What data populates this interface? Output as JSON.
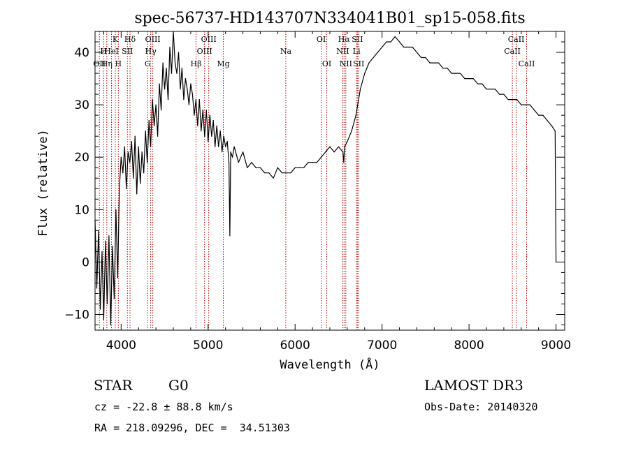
{
  "chart_data": {
    "type": "line",
    "title": "spec-56737-HD143707N334041B01_sp15-058.fits",
    "xlabel": "Wavelength (Å)",
    "ylabel": "Flux (relative)",
    "xlim": [
      3700,
      9100
    ],
    "ylim": [
      -13,
      44
    ],
    "xticks": [
      4000,
      5000,
      6000,
      7000,
      8000,
      9000
    ],
    "yticks": [
      -10,
      0,
      10,
      20,
      30,
      40
    ],
    "grid": false,
    "series": [
      {
        "name": "flux",
        "x": [
          3700,
          3720,
          3740,
          3760,
          3780,
          3800,
          3820,
          3840,
          3860,
          3880,
          3900,
          3920,
          3940,
          3960,
          3980,
          4000,
          4020,
          4040,
          4060,
          4080,
          4100,
          4120,
          4140,
          4160,
          4180,
          4200,
          4220,
          4240,
          4260,
          4280,
          4300,
          4320,
          4340,
          4360,
          4380,
          4400,
          4420,
          4440,
          4460,
          4480,
          4500,
          4520,
          4540,
          4560,
          4580,
          4600,
          4620,
          4640,
          4660,
          4680,
          4700,
          4720,
          4740,
          4760,
          4780,
          4800,
          4820,
          4840,
          4860,
          4880,
          4900,
          4920,
          4940,
          4960,
          4980,
          5000,
          5020,
          5040,
          5060,
          5080,
          5100,
          5120,
          5140,
          5160,
          5180,
          5200,
          5220,
          5240,
          5250,
          5260,
          5280,
          5300,
          5350,
          5400,
          5450,
          5500,
          5550,
          5600,
          5650,
          5700,
          5750,
          5800,
          5850,
          5900,
          5950,
          6000,
          6050,
          6100,
          6150,
          6200,
          6250,
          6300,
          6350,
          6400,
          6450,
          6500,
          6550,
          6560,
          6570,
          6600,
          6650,
          6700,
          6750,
          6800,
          6850,
          6900,
          6950,
          7000,
          7050,
          7100,
          7150,
          7200,
          7250,
          7300,
          7350,
          7400,
          7450,
          7500,
          7550,
          7600,
          7650,
          7700,
          7750,
          7800,
          7850,
          7900,
          7950,
          8000,
          8050,
          8100,
          8150,
          8200,
          8250,
          8300,
          8350,
          8400,
          8450,
          8500,
          8550,
          8600,
          8650,
          8700,
          8750,
          8800,
          8850,
          8900,
          8950,
          8990,
          9000
        ],
        "y": [
          8,
          -5,
          6,
          -9,
          2,
          -11,
          4,
          -8,
          5,
          -12,
          3,
          -7,
          10,
          -3,
          14,
          20,
          17,
          22,
          14,
          21,
          19,
          23,
          16,
          24,
          13,
          22,
          15,
          21,
          17,
          25,
          19,
          27,
          22,
          31,
          26,
          30,
          24,
          34,
          29,
          38,
          33,
          37,
          31,
          41,
          36,
          44,
          38,
          36,
          40,
          33,
          37,
          31,
          35,
          33,
          30,
          34,
          32,
          28,
          31,
          26,
          31,
          25,
          29,
          24,
          29,
          23,
          28,
          24,
          27,
          22,
          26,
          22,
          25,
          21,
          24,
          22,
          23,
          19,
          5,
          21,
          20,
          22,
          19,
          21,
          18,
          19,
          18,
          18,
          17,
          17,
          16,
          18,
          17,
          17,
          17,
          18,
          18,
          18,
          19,
          19,
          19,
          20,
          21,
          22,
          21,
          22,
          21,
          19,
          22,
          23,
          25,
          28,
          33,
          36,
          38,
          39,
          40,
          41,
          42,
          42,
          43,
          42,
          41,
          41,
          41,
          40,
          39,
          39,
          38,
          38,
          38,
          37,
          37,
          36,
          36,
          36,
          35,
          35,
          35,
          34,
          34,
          33,
          33,
          33,
          32,
          32,
          31,
          31,
          31,
          30,
          30,
          30,
          29,
          28,
          28,
          27,
          26,
          25,
          0
        ]
      }
    ],
    "lines": [
      {
        "wl": 3750,
        "label": "OII",
        "row": 2
      },
      {
        "wl": 3798,
        "label": "H",
        "row": 1
      },
      {
        "wl": 3835,
        "label": "Hη",
        "row": 2
      },
      {
        "wl": 3889,
        "label": "HeI",
        "row": 1
      },
      {
        "wl": 3933,
        "label": "K",
        "row": 0
      },
      {
        "wl": 3968,
        "label": "H",
        "row": 2
      },
      {
        "wl": 4072,
        "label": "SII",
        "row": 1
      },
      {
        "wl": 4102,
        "label": "Hδ",
        "row": 0
      },
      {
        "wl": 4305,
        "label": "G",
        "row": 2
      },
      {
        "wl": 4340,
        "label": "Hγ",
        "row": 1
      },
      {
        "wl": 4364,
        "label": "OIII",
        "row": 0
      },
      {
        "wl": 4861,
        "label": "Hβ",
        "row": 2
      },
      {
        "wl": 4959,
        "label": "OIII",
        "row": 1
      },
      {
        "wl": 5007,
        "label": "OIII",
        "row": 0
      },
      {
        "wl": 5175,
        "label": "Mg",
        "row": 2
      },
      {
        "wl": 5893,
        "label": "Na",
        "row": 1
      },
      {
        "wl": 6300,
        "label": "OI",
        "row": 0
      },
      {
        "wl": 6364,
        "label": "OI",
        "row": 2
      },
      {
        "wl": 6548,
        "label": "NII",
        "row": 1
      },
      {
        "wl": 6563,
        "label": "Hα",
        "row": 0
      },
      {
        "wl": 6583,
        "label": "NII",
        "row": 2
      },
      {
        "wl": 6707,
        "label": "Li",
        "row": 1
      },
      {
        "wl": 6716,
        "label": "SII",
        "row": 0
      },
      {
        "wl": 6731,
        "label": "SII",
        "row": 2
      },
      {
        "wl": 8498,
        "label": "CaII",
        "row": 1
      },
      {
        "wl": 8542,
        "label": "CaII",
        "row": 0
      },
      {
        "wl": 8662,
        "label": "CaII",
        "row": 2
      }
    ]
  },
  "info": {
    "class": "STAR",
    "subclass": "G0",
    "survey": "LAMOST DR3",
    "cz": "cz = -22.8 ± 88.8 km/s",
    "obs_date": "Obs-Date: 20140320",
    "coords": "RA = 218.09296, DEC =  34.51303"
  }
}
